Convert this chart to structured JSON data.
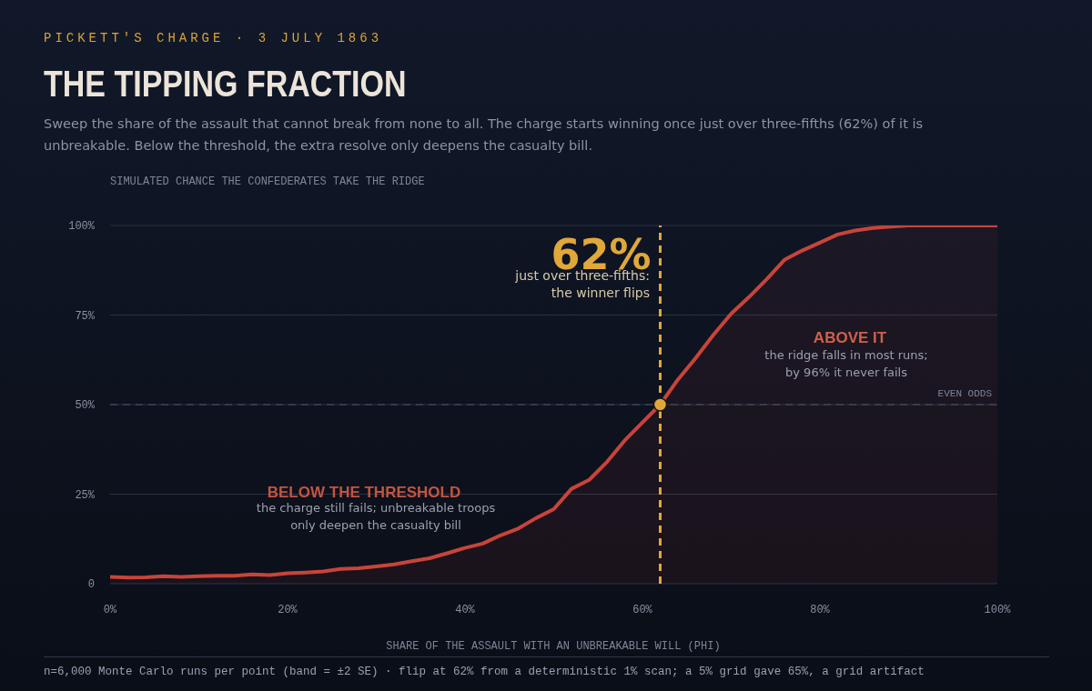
{
  "chart_data": {
    "type": "area",
    "title": "THE TIPPING FRACTION",
    "subtitle": "Sweep the share of the assault that cannot break from none to all. The charge starts winning once just over three-fifths (62%) of it is unbreakable. Below the threshold, the extra resolve only deepens the casualty bill.",
    "xlabel": "SHARE OF THE ASSAULT WITH AN UNBREAKABLE WILL (PHI)",
    "ylabel": "SIMULATED CHANCE THE CONFEDERATES TAKE THE RIDGE",
    "x": [
      0,
      2,
      4,
      6,
      8,
      10,
      12,
      14,
      16,
      18,
      20,
      22,
      24,
      26,
      28,
      30,
      32,
      34,
      36,
      38,
      40,
      42,
      44,
      46,
      48,
      50,
      52,
      54,
      56,
      58,
      60,
      62,
      64,
      66,
      68,
      70,
      72,
      74,
      76,
      78,
      80,
      82,
      84,
      86,
      88,
      90,
      92,
      94,
      96,
      98,
      100
    ],
    "series": [
      {
        "color": "#c8443a",
        "values": [
          1.9,
          1.7,
          1.8,
          2.1,
          1.9,
          2.1,
          2.2,
          2.2,
          2.6,
          2.4,
          2.9,
          3.1,
          3.4,
          4.1,
          4.3,
          4.8,
          5.4,
          6.3,
          7.1,
          8.5,
          10,
          11.2,
          13.5,
          15.4,
          18.3,
          20.8,
          26.5,
          29,
          34,
          40,
          45,
          50,
          57,
          63,
          69.5,
          75.4,
          80,
          85,
          90.4,
          93,
          95.2,
          97.5,
          98.6,
          99.3,
          99.7,
          100,
          100,
          100,
          100,
          100,
          100
        ]
      },
      {
        "type": "scatter",
        "color": "#e0a83a",
        "x": [
          62
        ],
        "values": [
          50
        ]
      }
    ],
    "xlim": [
      0,
      100
    ],
    "xticks": [
      {
        "value": 0,
        "label": "0%"
      },
      {
        "value": 20,
        "label": "20%"
      },
      {
        "value": 40,
        "label": "40%"
      },
      {
        "value": 60,
        "label": "60%"
      },
      {
        "value": 80,
        "label": "80%"
      },
      {
        "value": 100,
        "label": "100%"
      }
    ],
    "ylim": [
      0,
      100
    ],
    "yticks": [
      0,
      {
        "value": 25,
        "label": "25%"
      },
      {
        "value": 50,
        "label": "50%"
      },
      {
        "value": 75,
        "label": "75%"
      },
      {
        "value": 100,
        "label": "100%"
      }
    ],
    "grid": "y",
    "ref_lines": [
      {
        "axis": "x",
        "value": 62,
        "label": "62%",
        "color": "#e0a83a",
        "line_style": "dashed"
      },
      {
        "axis": "y",
        "value": 50,
        "label": "EVEN ODDS",
        "color": "#4a5468",
        "line_style": "dashed"
      }
    ],
    "annotations": [
      "PICKETT'S CHARGE · 3 JULY 1863",
      "n=6,000 Monte Carlo runs per point (band = ±2 SE) · flip at 62% from a deterministic 1% scan; a 5% grid gave 65%, a grid artifact",
      "just over three-fifths: the winner flips",
      "BELOW THE THRESHOLD",
      "the charge still fails; unbreakable troops only deepen the casualty bill",
      "ABOVE IT",
      "the ridge falls in most runs; by 96% it never fails"
    ]
  }
}
